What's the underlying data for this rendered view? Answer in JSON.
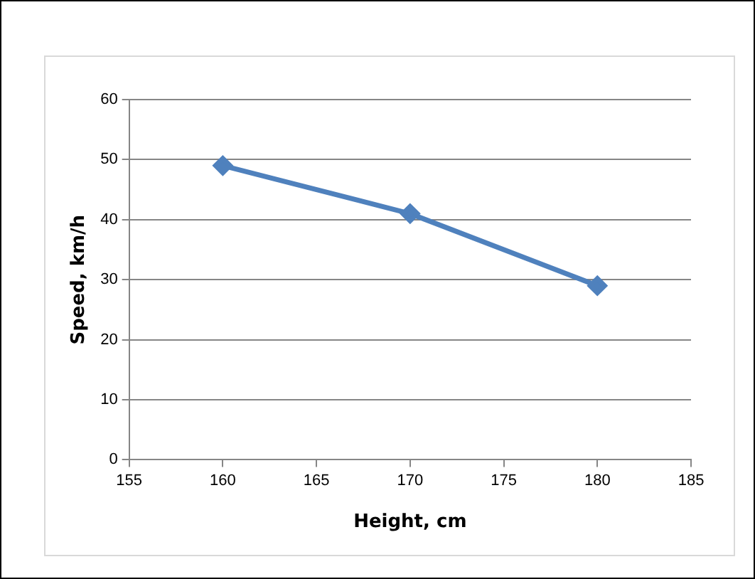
{
  "chart_data": {
    "type": "line",
    "xlabel": "Height, cm",
    "ylabel": "Speed, km/h",
    "x": [
      160,
      170,
      180
    ],
    "series": [
      {
        "color": "#4f81bd",
        "values": [
          49,
          41,
          29
        ]
      }
    ],
    "xlim": [
      155,
      185
    ],
    "xticks": [
      155,
      160,
      165,
      170,
      175,
      180,
      185
    ],
    "ylim": [
      0,
      60
    ],
    "yticks": [
      0,
      10,
      20,
      30,
      40,
      50,
      60
    ],
    "grid": "y",
    "legend": false,
    "marker": "diamond",
    "line_style": "solid"
  }
}
